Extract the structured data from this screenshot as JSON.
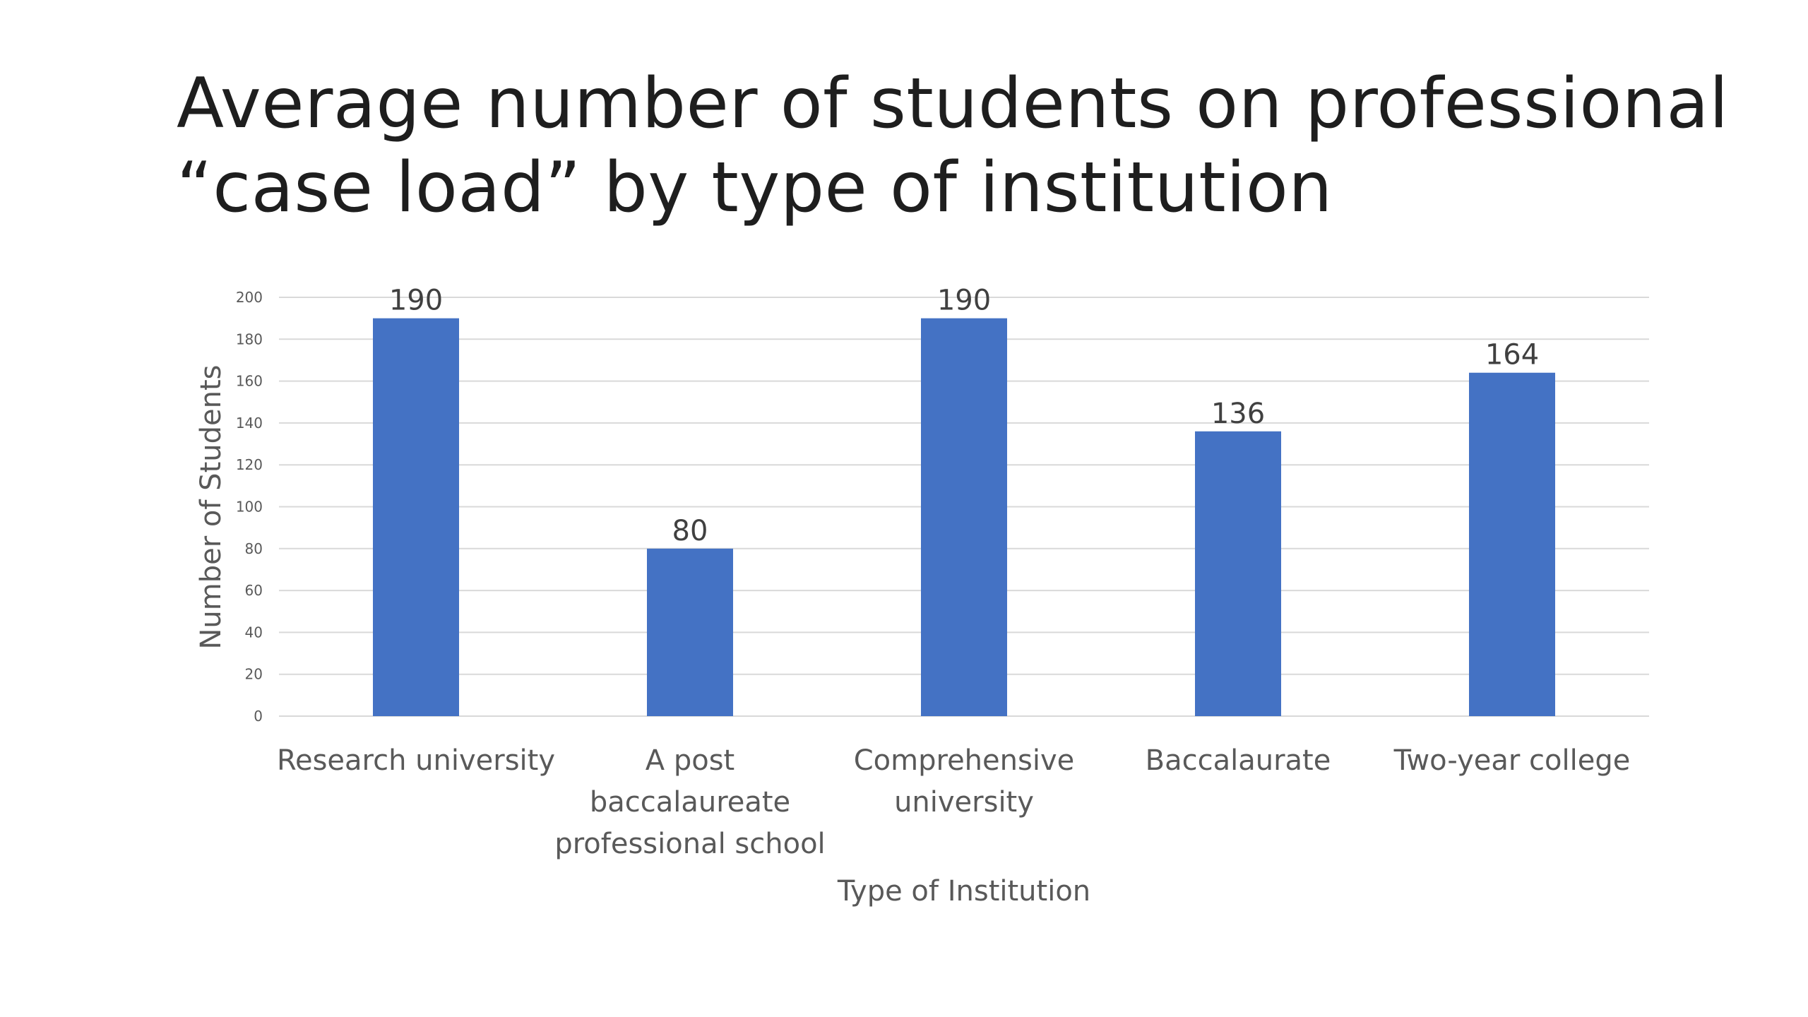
{
  "slide": {
    "title_line1": "Average number of students on professional",
    "title_line2": "“case load” by type of institution"
  },
  "chart_data": {
    "type": "bar",
    "categories": [
      "Research university",
      "A post baccalaureate professional school",
      "Comprehensive university",
      "Baccalaurate",
      "Two-year college"
    ],
    "category_lines": [
      [
        "Research university"
      ],
      [
        "A post",
        "baccalaureate",
        "professional school"
      ],
      [
        "Comprehensive",
        "university"
      ],
      [
        "Baccalaurate"
      ],
      [
        "Two-year college"
      ]
    ],
    "values": [
      190,
      80,
      190,
      136,
      164
    ],
    "data_labels": [
      "190",
      "80",
      "190",
      "136",
      "164"
    ],
    "xlabel": "Type of Institution",
    "ylabel": "Number of Students",
    "ylim": [
      0,
      200
    ],
    "yticks": [
      0,
      20,
      40,
      60,
      80,
      100,
      120,
      140,
      160,
      180,
      200
    ],
    "grid": true,
    "legend": "none",
    "bar_color": "#4472C4",
    "gridline_color": "#D9D9D9"
  }
}
